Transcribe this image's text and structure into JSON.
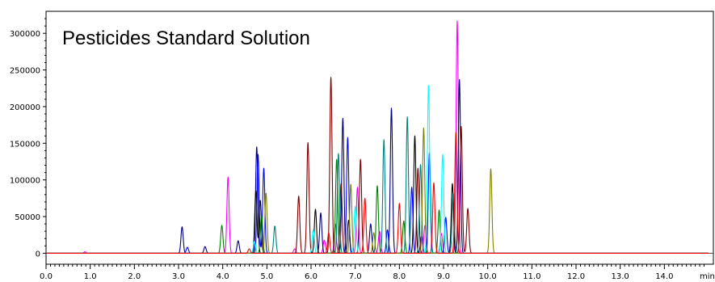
{
  "chart_data": {
    "type": "line",
    "title": "Pesticides Standard Solution",
    "xlabel": "",
    "ylabel": "",
    "x_unit": "min",
    "xlim": [
      0.0,
      15.0
    ],
    "ylim": [
      -15000,
      330000
    ],
    "x_ticks": [
      "0.0",
      "1.0",
      "2.0",
      "3.0",
      "4.0",
      "5.0",
      "6.0",
      "7.0",
      "8.0",
      "9.0",
      "10.0",
      "11.0",
      "12.0",
      "13.0",
      "14.0"
    ],
    "y_ticks": [
      "0",
      "50000",
      "100000",
      "150000",
      "200000",
      "250000",
      "300000"
    ],
    "grid": false,
    "legend": "none",
    "series": [
      {
        "color": "#ff00ff",
        "peaks": [
          [
            0.88,
            2000
          ],
          [
            4.12,
            104000
          ],
          [
            5.63,
            6000
          ],
          [
            6.3,
            18000
          ],
          [
            6.55,
            40000
          ],
          [
            7.05,
            90000
          ],
          [
            7.55,
            30000
          ],
          [
            8.58,
            38000
          ],
          [
            8.95,
            27000
          ],
          [
            9.31,
            317000
          ]
        ]
      },
      {
        "color": "#000080",
        "peaks": [
          [
            3.08,
            36000
          ],
          [
            3.6,
            9000
          ],
          [
            4.35,
            17000
          ],
          [
            4.77,
            145000
          ],
          [
            6.22,
            55000
          ],
          [
            6.72,
            184000
          ],
          [
            7.35,
            40000
          ],
          [
            7.82,
            198000
          ],
          [
            8.5,
            23000
          ],
          [
            9.36,
            237000
          ]
        ]
      },
      {
        "color": "#000000",
        "peaks": [
          [
            4.75,
            85000
          ],
          [
            4.85,
            72000
          ],
          [
            6.1,
            60000
          ],
          [
            6.85,
            45000
          ],
          [
            8.35,
            160000
          ],
          [
            9.2,
            95000
          ]
        ]
      },
      {
        "color": "#0000ff",
        "peaks": [
          [
            3.2,
            8000
          ],
          [
            4.8,
            135000
          ],
          [
            4.93,
            116000
          ],
          [
            6.83,
            158000
          ],
          [
            7.73,
            32000
          ],
          [
            8.28,
            90000
          ],
          [
            8.68,
            137000
          ],
          [
            9.05,
            49000
          ]
        ]
      },
      {
        "color": "#008000",
        "peaks": [
          [
            3.98,
            38000
          ],
          [
            4.88,
            52000
          ],
          [
            6.58,
            128000
          ],
          [
            7.5,
            92000
          ],
          [
            8.1,
            44000
          ],
          [
            8.9,
            59000
          ]
        ]
      },
      {
        "color": "#800000",
        "peaks": [
          [
            5.72,
            78000
          ],
          [
            5.93,
            151000
          ],
          [
            6.45,
            240000
          ],
          [
            6.68,
            95000
          ],
          [
            7.12,
            128000
          ],
          [
            8.42,
            116000
          ],
          [
            9.4,
            173000
          ],
          [
            9.55,
            61000
          ]
        ]
      },
      {
        "color": "#008080",
        "peaks": [
          [
            5.18,
            37000
          ],
          [
            6.62,
            136000
          ],
          [
            7.65,
            155000
          ],
          [
            8.18,
            186000
          ],
          [
            8.48,
            121000
          ],
          [
            9.22,
            82000
          ]
        ]
      },
      {
        "color": "#00ffff",
        "peaks": [
          [
            4.72,
            16000
          ],
          [
            6.05,
            32000
          ],
          [
            7.0,
            64000
          ],
          [
            8.66,
            229000
          ],
          [
            8.98,
            135000
          ]
        ]
      },
      {
        "color": "#808000",
        "peaks": [
          [
            4.98,
            82000
          ],
          [
            6.9,
            94000
          ],
          [
            7.42,
            28000
          ],
          [
            8.55,
            171000
          ],
          [
            10.07,
            115000
          ]
        ]
      },
      {
        "color": "#ff0000",
        "peaks": [
          [
            4.6,
            6000
          ],
          [
            6.4,
            28000
          ],
          [
            7.22,
            75000
          ],
          [
            8.0,
            68000
          ],
          [
            8.78,
            96000
          ],
          [
            9.28,
            165000
          ]
        ]
      }
    ]
  }
}
